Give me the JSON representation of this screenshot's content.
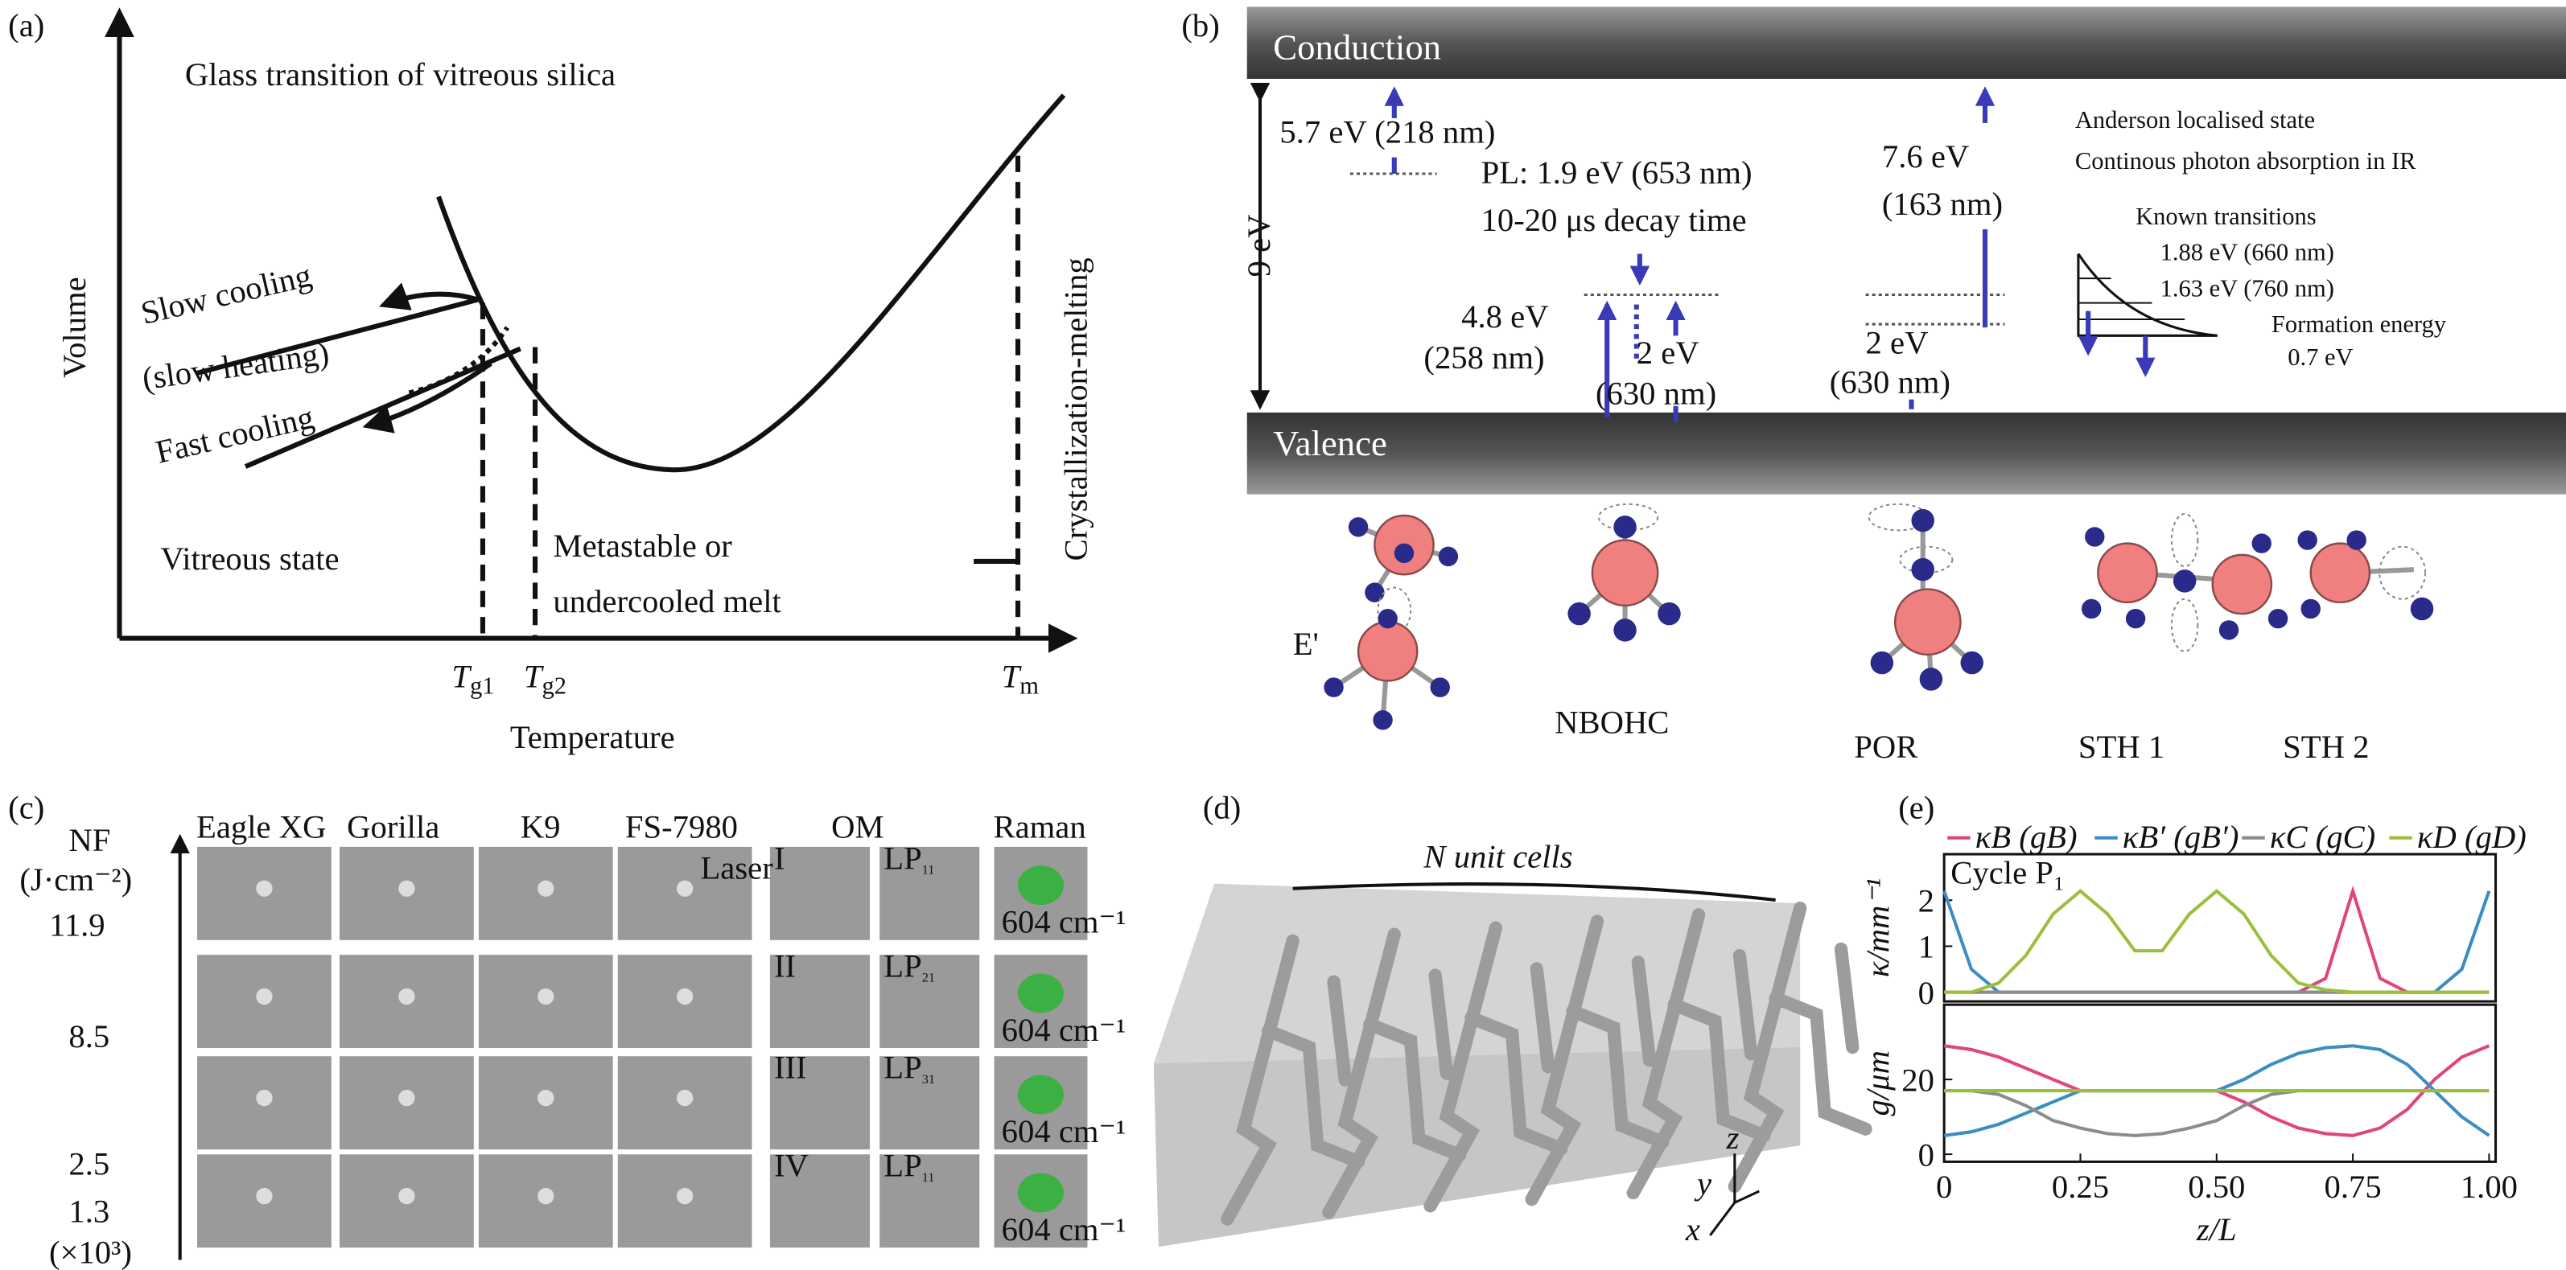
{
  "panel_a": {
    "label": "(a)",
    "title": "Glass transition of vitreous silica",
    "y_axis": "Volume",
    "x_axis": "Temperature",
    "annotations": [
      "Slow cooling",
      "(slow heating)",
      "Fast cooling",
      "Vitreous state",
      "Metastable or",
      "undercooled melt",
      "Crystallization-melting"
    ],
    "temperatures": [
      {
        "symbol": "T",
        "subscript": "g1"
      },
      {
        "symbol": "T",
        "subscript": "g2"
      },
      {
        "symbol": "T",
        "subscript": "m"
      }
    ]
  },
  "panel_b": {
    "label": "(b)",
    "bands": [
      "Conduction",
      "Valence"
    ],
    "gap": "9 eV",
    "annotations": [
      "5.7 eV (218 nm)",
      "PL: 1.9 eV (653 nm)",
      "10-20 μs decay time",
      "7.6 eV",
      "(163 nm)",
      "Anderson localised state",
      "Continous photon absorption in IR",
      "Known transitions",
      "1.88 eV (660 nm)",
      "1.63 eV (760 nm)",
      "Formation energy",
      "0.7 eV",
      "4.8 eV",
      "(258 nm)",
      "2 eV",
      "(630 nm)",
      "2 eV",
      "(630 nm)"
    ],
    "defects": [
      "E'",
      "NBOHC",
      "POR",
      "STH 1",
      "STH 2"
    ]
  },
  "panel_c": {
    "label": "(c)",
    "y_axis": {
      "symbol": "NF",
      "unit": "(J·cm⁻²)",
      "multiplier": "(×10³)"
    },
    "fluences": [
      11.9,
      8.5,
      2.5,
      1.3
    ],
    "columns": [
      "Eagle XG",
      "Gorilla",
      "K9",
      "FS-7980",
      "OM",
      "Raman"
    ],
    "laser": "Laser",
    "roman": [
      "I",
      "II",
      "III",
      "IV"
    ],
    "om_modes": [
      {
        "base": "LP",
        "sub": "11"
      },
      {
        "base": "LP",
        "sub": "21"
      },
      {
        "base": "LP",
        "sub": "31"
      },
      {
        "base": "LP",
        "sub": "11"
      }
    ],
    "raman_labels": [
      "604 cm⁻¹",
      "604 cm⁻¹",
      "604 cm⁻¹",
      "604 cm⁻¹"
    ]
  },
  "panel_d": {
    "label": "(d)",
    "title": "N unit cells",
    "axes": [
      "x",
      "y",
      "z"
    ]
  },
  "panel_e_label": "(e)",
  "chart_data": [
    {
      "type": "line",
      "ylabel": "κ/mm⁻¹",
      "annotation": "Cycle P₁",
      "xlim": [
        0,
        1
      ],
      "ylim": [
        -0.2,
        3.0
      ],
      "yticks": [
        0,
        1,
        2
      ],
      "x": [
        0,
        0.05,
        0.1,
        0.15,
        0.2,
        0.25,
        0.3,
        0.35,
        0.4,
        0.45,
        0.5,
        0.55,
        0.6,
        0.65,
        0.7,
        0.75,
        0.8,
        0.85,
        0.9,
        0.95,
        1
      ],
      "series": [
        {
          "name": "κB (gB)",
          "color": "#e0457b",
          "values": [
            0,
            0,
            0,
            0,
            0,
            0,
            0,
            0,
            0,
            0,
            0,
            0,
            0,
            0,
            0.3,
            2.2,
            0.3,
            0,
            0,
            0,
            0
          ]
        },
        {
          "name": "κB′ (gB′)",
          "color": "#3c8dc4",
          "values": [
            2.2,
            0.5,
            0,
            0,
            0,
            0,
            0,
            0,
            0,
            0,
            0,
            0,
            0,
            0,
            0,
            0,
            0,
            0,
            0,
            0.5,
            2.2
          ]
        },
        {
          "name": "κC (gC)",
          "color": "#8c8c8c",
          "values": [
            0,
            0,
            0,
            0,
            0,
            0,
            0,
            0,
            0,
            0,
            0,
            0,
            0,
            0,
            0,
            0,
            0,
            0,
            0,
            0,
            0
          ]
        },
        {
          "name": "κD (gD)",
          "color": "#9bbf3c",
          "values": [
            0,
            0,
            0.2,
            0.8,
            1.7,
            2.2,
            1.7,
            0.9,
            0.9,
            1.7,
            2.2,
            1.7,
            0.8,
            0.2,
            0.05,
            0,
            0,
            0,
            0,
            0,
            0
          ]
        }
      ]
    },
    {
      "type": "line",
      "ylabel": "g/μm",
      "xlabel": "z/L",
      "xlim": [
        0,
        1
      ],
      "ylim": [
        -2,
        40
      ],
      "yticks": [
        0,
        20
      ],
      "xticks": [
        0,
        {
          "value": 0.25,
          "label": "0.25"
        },
        {
          "value": 0.5,
          "label": "0.50"
        },
        0.75,
        {
          "value": 1,
          "label": "1.00"
        }
      ],
      "x": [
        0,
        0.05,
        0.1,
        0.15,
        0.2,
        0.25,
        0.3,
        0.35,
        0.4,
        0.45,
        0.5,
        0.55,
        0.6,
        0.65,
        0.7,
        0.75,
        0.8,
        0.85,
        0.9,
        0.95,
        1
      ],
      "series": [
        {
          "color": "#e0457b",
          "values": [
            29,
            28,
            26,
            23,
            20,
            17,
            17,
            17,
            17,
            17,
            17,
            14,
            10,
            7,
            5.5,
            5,
            7,
            12,
            20,
            26,
            29
          ]
        },
        {
          "color": "#3c8dc4",
          "values": [
            5,
            6,
            8,
            11,
            14,
            17,
            17,
            17,
            17,
            17,
            17,
            20,
            24,
            27,
            28.5,
            29,
            28,
            24,
            17,
            10,
            5
          ]
        },
        {
          "color": "#8c8c8c",
          "values": [
            17,
            17,
            16,
            13,
            9,
            7,
            5.5,
            5,
            5.5,
            7,
            9,
            13,
            16,
            17,
            17,
            17,
            17,
            17,
            17,
            17,
            17
          ]
        },
        {
          "color": "#9bbf3c",
          "values": [
            17,
            17,
            17,
            17,
            17,
            17,
            17,
            17,
            17,
            17,
            17,
            17,
            17,
            17,
            17,
            17,
            17,
            17,
            17,
            17,
            17
          ]
        }
      ]
    }
  ]
}
